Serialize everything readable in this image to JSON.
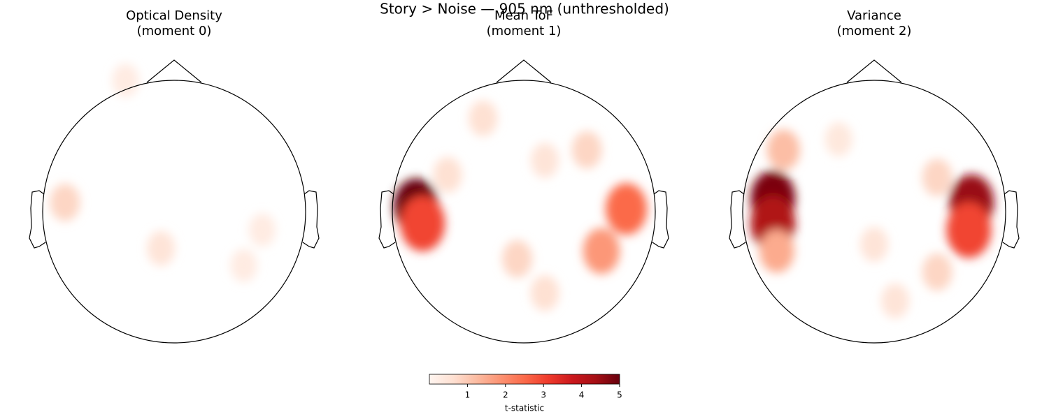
{
  "chart_data": {
    "type": "topomap",
    "title": "Story > Noise — 905 nm (unthresholded)",
    "panels": [
      {
        "title": [
          "Optical Density",
          "(moment 0)"
        ],
        "blobs": [
          {
            "x": -0.83,
            "y": 0.07,
            "t": 0.8
          },
          {
            "x": -0.1,
            "y": -0.28,
            "t": 0.5
          },
          {
            "x": -0.37,
            "y": 1.0,
            "t": 0.3
          },
          {
            "x": 0.67,
            "y": -0.14,
            "t": 0.3
          },
          {
            "x": 0.53,
            "y": -0.41,
            "t": 0.3
          }
        ]
      },
      {
        "title": [
          "Mean ToF",
          "(moment 1)"
        ],
        "blobs": [
          {
            "x": -0.82,
            "y": 0.04,
            "t": 5
          },
          {
            "x": -0.77,
            "y": -0.09,
            "t": 3
          },
          {
            "x": -0.31,
            "y": 0.71,
            "t": 0.6
          },
          {
            "x": 0.48,
            "y": 0.47,
            "t": 0.8
          },
          {
            "x": 0.78,
            "y": 0.02,
            "t": 2.5
          },
          {
            "x": 0.59,
            "y": -0.3,
            "t": 1.8
          },
          {
            "x": -0.05,
            "y": -0.36,
            "t": 0.8
          },
          {
            "x": 0.16,
            "y": -0.62,
            "t": 0.6
          },
          {
            "x": 0.16,
            "y": 0.39,
            "t": 0.5
          },
          {
            "x": -0.58,
            "y": 0.28,
            "t": 0.6
          }
        ]
      },
      {
        "title": [
          "Variance",
          "(moment 2)"
        ],
        "blobs": [
          {
            "x": -0.77,
            "y": 0.1,
            "t": 4.8
          },
          {
            "x": -0.77,
            "y": -0.09,
            "t": 4.2
          },
          {
            "x": 0.74,
            "y": 0.07,
            "t": 4.5
          },
          {
            "x": 0.72,
            "y": -0.14,
            "t": 3
          },
          {
            "x": -0.69,
            "y": 0.47,
            "t": 1.2
          },
          {
            "x": 0.48,
            "y": 0.26,
            "t": 0.8
          },
          {
            "x": 0.48,
            "y": -0.46,
            "t": 0.8
          },
          {
            "x": 0,
            "y": -0.25,
            "t": 0.5
          },
          {
            "x": 0.16,
            "y": -0.68,
            "t": 0.5
          },
          {
            "x": -0.27,
            "y": 0.55,
            "t": 0.4
          },
          {
            "x": -0.74,
            "y": -0.3,
            "t": 1.5
          }
        ]
      }
    ],
    "colorbar": {
      "label": "t-statistic",
      "clim": [
        0,
        5
      ],
      "ticks": [
        1,
        2,
        3,
        4,
        5
      ],
      "colormap": "Reds"
    }
  }
}
